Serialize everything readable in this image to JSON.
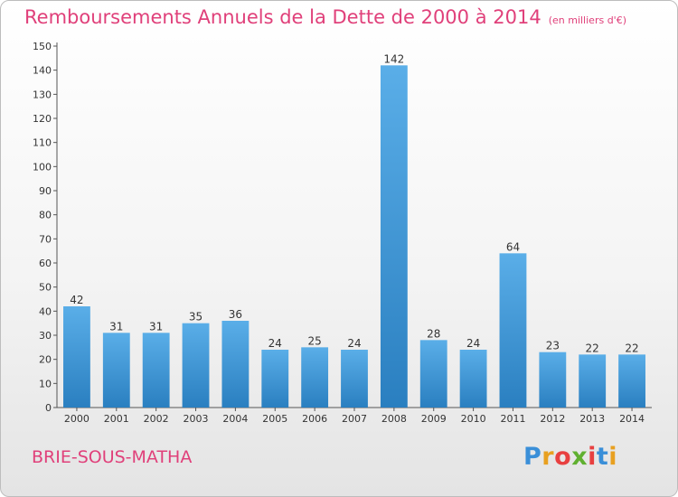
{
  "chart_data": {
    "type": "bar",
    "title": "Remboursements Annuels de la Dette de 2000 à 2014",
    "subtitle": "(en milliers d'€)",
    "categories": [
      "2000",
      "2001",
      "2002",
      "2003",
      "2004",
      "2005",
      "2006",
      "2007",
      "2008",
      "2009",
      "2010",
      "2011",
      "2012",
      "2013",
      "2014"
    ],
    "values": [
      42,
      31,
      31,
      35,
      36,
      24,
      25,
      24,
      142,
      28,
      24,
      64,
      23,
      22,
      22
    ],
    "ylim": [
      0,
      150
    ],
    "ytick_step": 10,
    "grid": false,
    "bar_color_top": "#5aaee8",
    "bar_color_bottom": "#2a7fc0",
    "value_labels": true
  },
  "footer": {
    "city": "BRIE-SOUS-MATHA",
    "logo": {
      "text": "Proxiti",
      "letter_colors": [
        "#3a8fd8",
        "#e8a020",
        "#e84040",
        "#60b030",
        "#e84040",
        "#3a8fd8",
        "#e8a020"
      ]
    }
  }
}
